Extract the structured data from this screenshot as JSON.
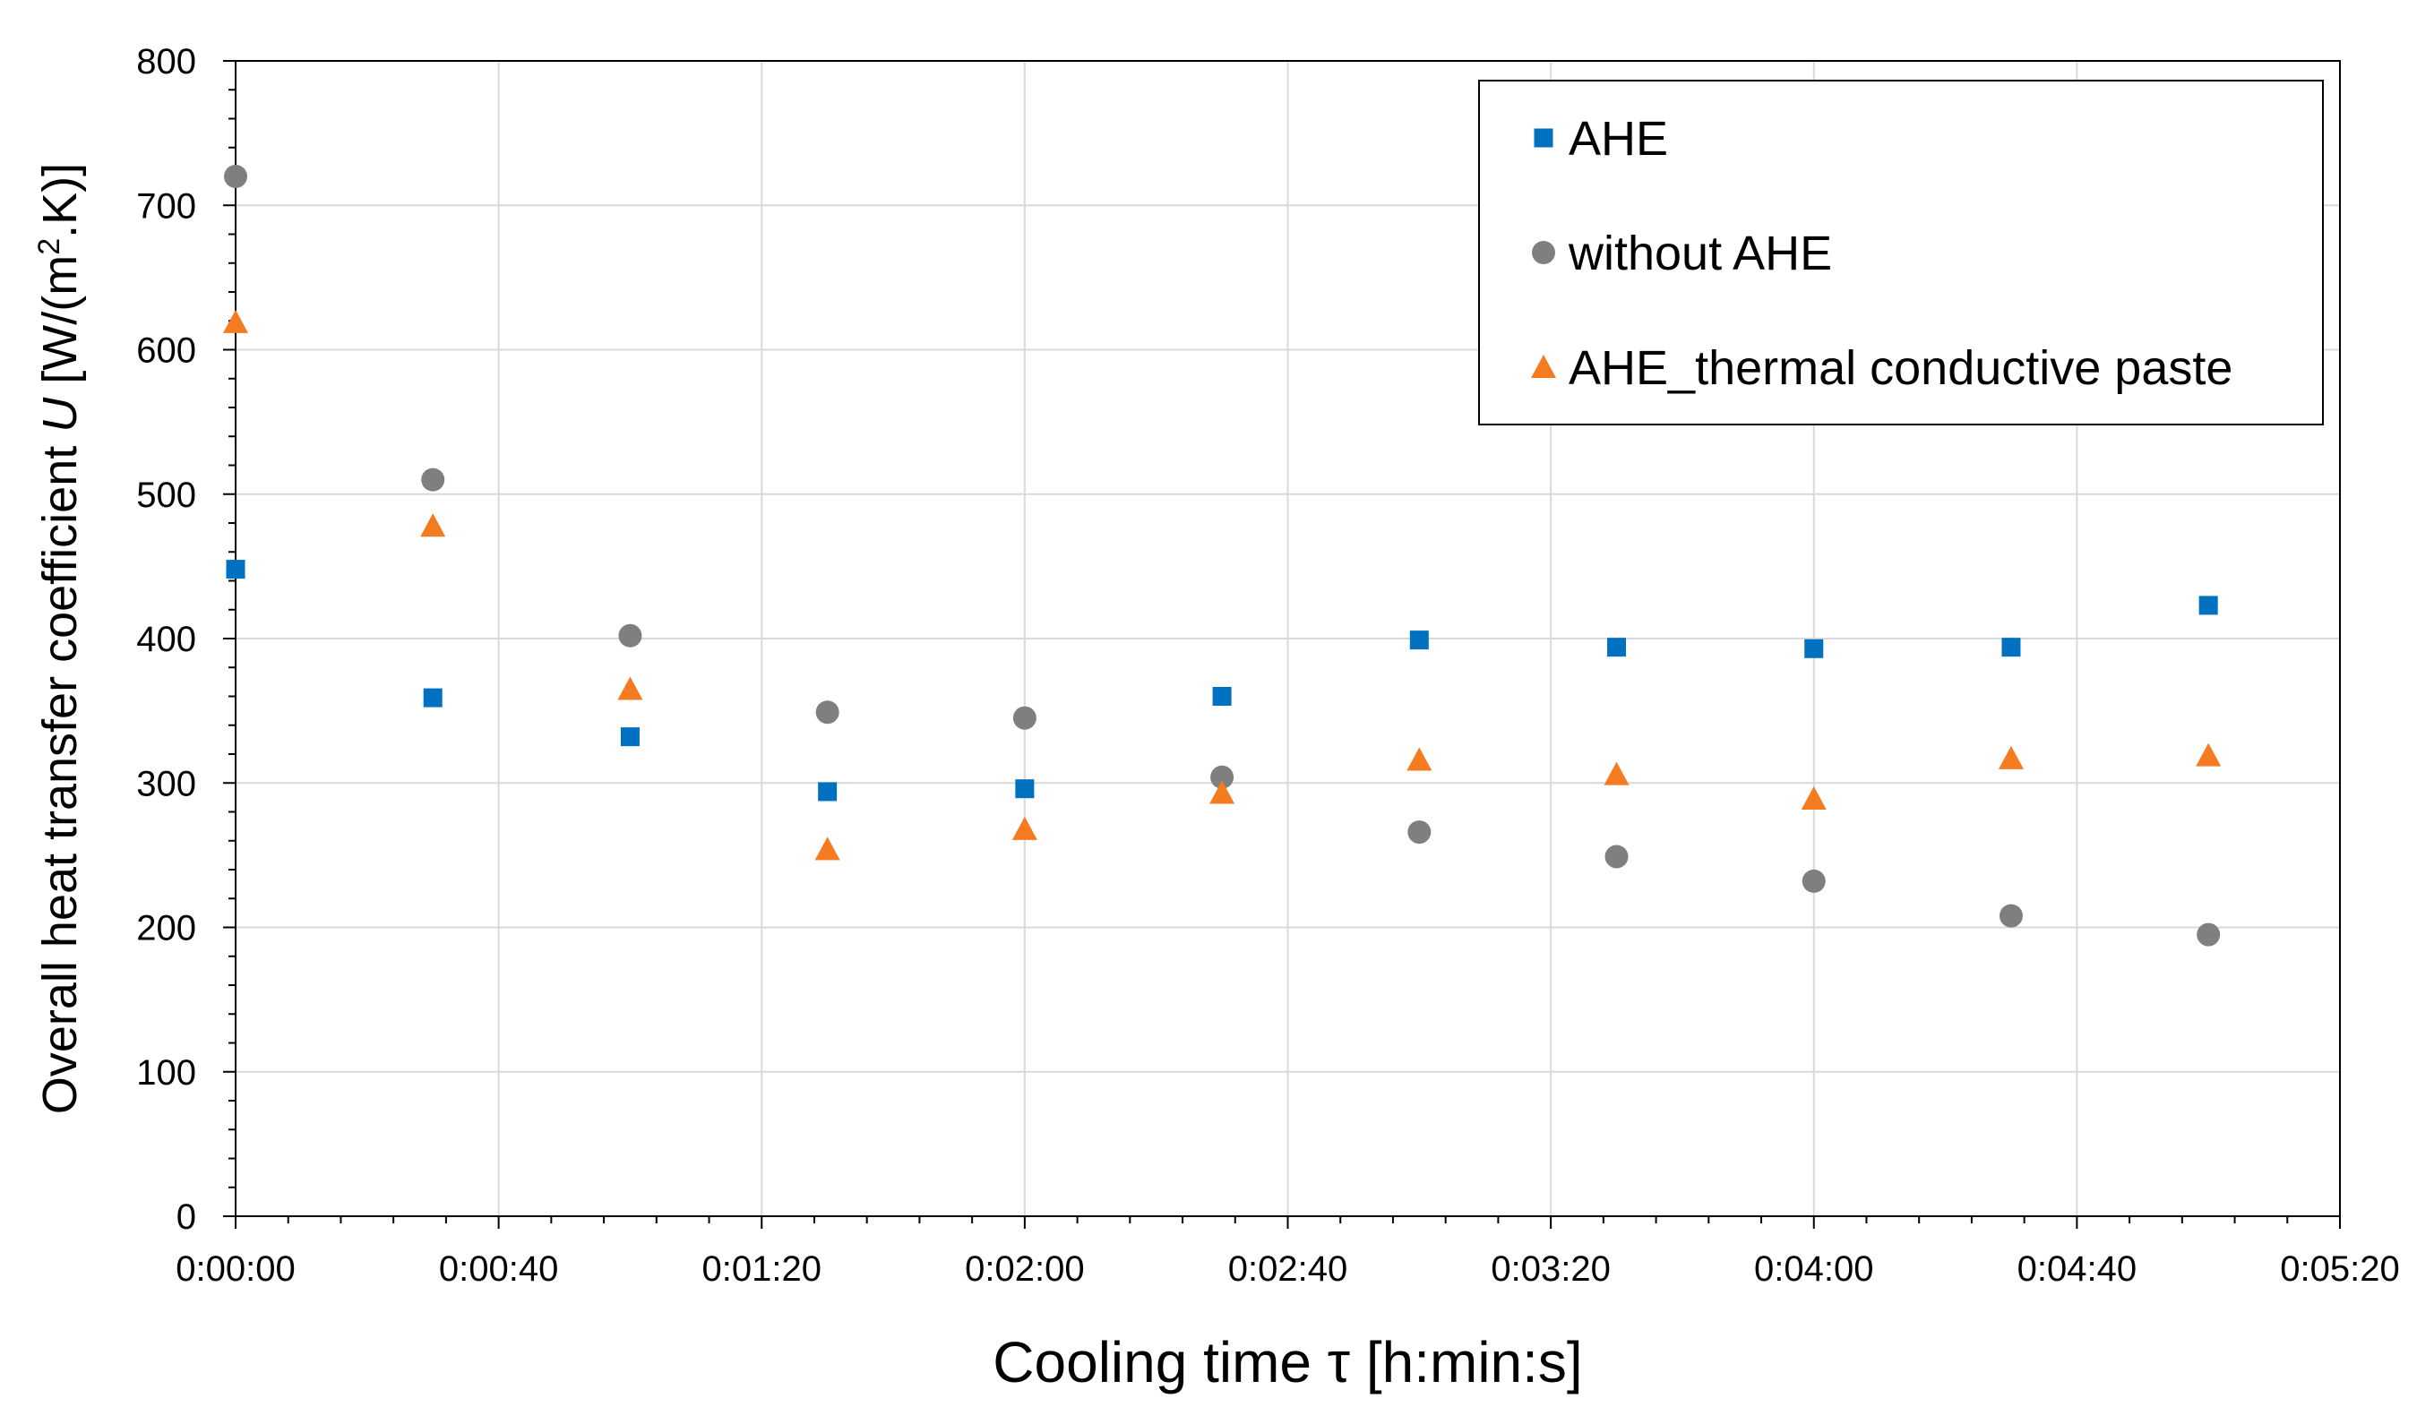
{
  "chart_data": {
    "type": "scatter",
    "title": "",
    "xlabel": {
      "prefix": "Cooling time ",
      "symbol": "τ",
      "suffix": " [h:min:s]"
    },
    "ylabel": {
      "prefix": "Overall heat transfer coefficient ",
      "symbol": "U",
      "unit_pre": " [W/(m",
      "unit_sup": "2",
      "unit_post": ".K)]"
    },
    "x_unit": "seconds",
    "xlim": [
      0,
      320
    ],
    "ylim": [
      0,
      800
    ],
    "x_ticks": [
      {
        "value": 0,
        "label": "0:00:00"
      },
      {
        "value": 40,
        "label": "0:00:40"
      },
      {
        "value": 80,
        "label": "0:01:20"
      },
      {
        "value": 120,
        "label": "0:02:00"
      },
      {
        "value": 160,
        "label": "0:02:40"
      },
      {
        "value": 200,
        "label": "0:03:20"
      },
      {
        "value": 240,
        "label": "0:04:00"
      },
      {
        "value": 280,
        "label": "0:04:40"
      },
      {
        "value": 320,
        "label": "0:05:20"
      }
    ],
    "y_ticks": [
      {
        "value": 0,
        "label": "0"
      },
      {
        "value": 100,
        "label": "100"
      },
      {
        "value": 200,
        "label": "200"
      },
      {
        "value": 300,
        "label": "300"
      },
      {
        "value": 400,
        "label": "400"
      },
      {
        "value": 500,
        "label": "500"
      },
      {
        "value": 600,
        "label": "600"
      },
      {
        "value": 700,
        "label": "700"
      },
      {
        "value": 800,
        "label": "800"
      }
    ],
    "x_minor_step": 8,
    "y_minor_step": 20,
    "grid": true,
    "legend_position": "top-right",
    "x": [
      0,
      30,
      60,
      90,
      120,
      150,
      180,
      210,
      240,
      270,
      300
    ],
    "series": [
      {
        "name": "AHE",
        "marker": "square",
        "color": "#0070C0",
        "values": [
          448,
          359,
          332,
          294,
          296,
          360,
          399,
          394,
          393,
          394,
          423
        ]
      },
      {
        "name": "without AHE",
        "marker": "circle",
        "color": "#7F7F7F",
        "values": [
          720,
          510,
          402,
          349,
          345,
          304,
          266,
          249,
          232,
          208,
          195
        ]
      },
      {
        "name": "AHE_thermal conductive paste",
        "marker": "triangle",
        "color": "#F47B20",
        "values": [
          619,
          478,
          365,
          254,
          268,
          293,
          316,
          306,
          289,
          317,
          319
        ]
      }
    ]
  }
}
